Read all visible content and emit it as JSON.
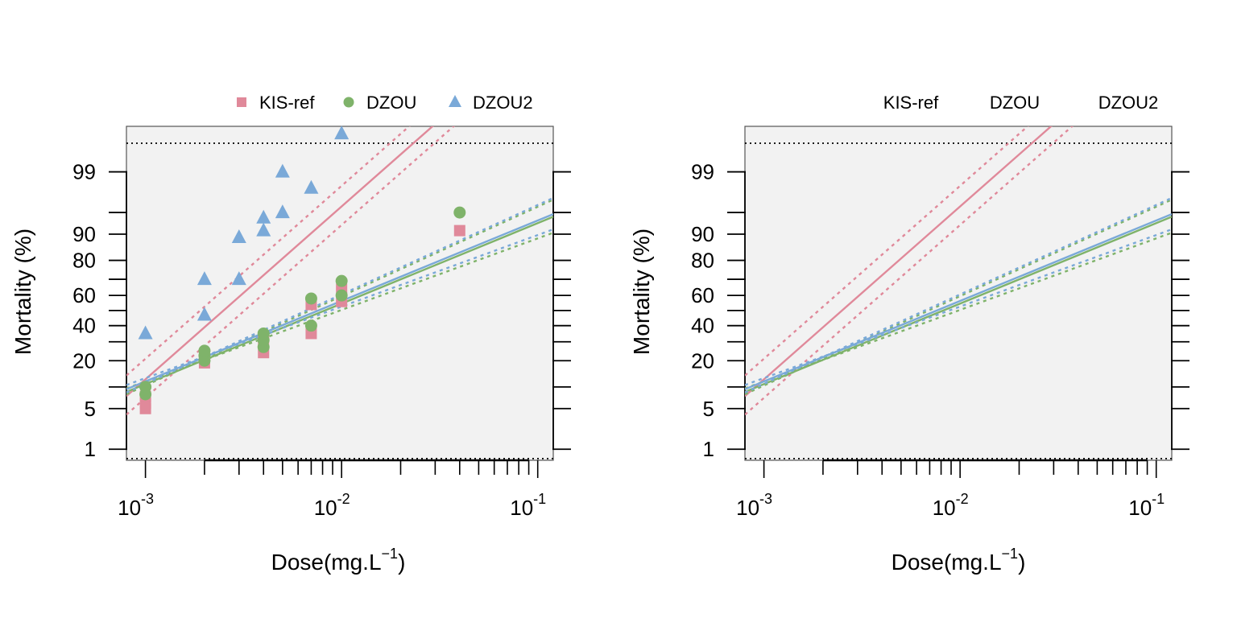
{
  "colors": {
    "KIS-ref": "#e0899a",
    "DZOU": "#7fb36a",
    "DZOU2": "#7aa9d8",
    "panel_bg": "#f2f2f2",
    "frame": "#555555"
  },
  "chart_data": [
    {
      "type": "scatter",
      "scale": {
        "x": "log10",
        "y": "probit"
      },
      "title": "",
      "xlabel": "Dose(mg.L",
      "xlabel_sup": "−1",
      "xlabel_close": ")",
      "ylabel": "Mortality (%)",
      "xlim": [
        0.0008,
        0.12
      ],
      "ylim_percent": [
        0.6,
        99.9
      ],
      "x_tick_labels": [
        {
          "value": 0.001,
          "base": "10",
          "exp": "-3"
        },
        {
          "value": 0.01,
          "base": "10",
          "exp": "-2"
        },
        {
          "value": 0.1,
          "base": "10",
          "exp": "-1"
        }
      ],
      "y_tick_labels": [
        1,
        5,
        20,
        40,
        60,
        80,
        90,
        99
      ],
      "y_minor_ticks": [
        1,
        5,
        10,
        20,
        30,
        40,
        50,
        60,
        70,
        80,
        90,
        95,
        99
      ],
      "reference_lines_percent": [
        0.65,
        99.75
      ],
      "legend": {
        "position": "top-right",
        "entries": [
          {
            "name": "KIS-ref",
            "marker": "square"
          },
          {
            "name": "DZOU",
            "marker": "circle"
          },
          {
            "name": "DZOU2",
            "marker": "triangle"
          }
        ]
      },
      "series": [
        {
          "name": "KIS-ref",
          "marker": "square",
          "points": [
            [
              0.001,
              5
            ],
            [
              0.001,
              6
            ],
            [
              0.001,
              7.5
            ],
            [
              0.002,
              19
            ],
            [
              0.002,
              21
            ],
            [
              0.004,
              24
            ],
            [
              0.004,
              30
            ],
            [
              0.004,
              33
            ],
            [
              0.007,
              35
            ],
            [
              0.007,
              54
            ],
            [
              0.01,
              56
            ],
            [
              0.01,
              64
            ],
            [
              0.04,
              91
            ]
          ],
          "fit": {
            "ld50": 0.0025,
            "slope": 2.9
          },
          "ci_low": {
            "ld50": 0.0032,
            "slope": 2.9
          },
          "ci_high": {
            "ld50": 0.0019,
            "slope": 2.9
          }
        },
        {
          "name": "DZOU",
          "marker": "circle",
          "points": [
            [
              0.001,
              8
            ],
            [
              0.001,
              10
            ],
            [
              0.002,
              20
            ],
            [
              0.002,
              22.5
            ],
            [
              0.002,
              25
            ],
            [
              0.004,
              27
            ],
            [
              0.004,
              31
            ],
            [
              0.004,
              35
            ],
            [
              0.007,
              40
            ],
            [
              0.007,
              58
            ],
            [
              0.01,
              60
            ],
            [
              0.01,
              69
            ],
            [
              0.04,
              95
            ]
          ],
          "fit": {
            "ld50": 0.0082,
            "slope": 1.35
          },
          "ci_low": {
            "ld50": 0.0098,
            "slope": 1.2
          },
          "ci_high": {
            "ld50": 0.0069,
            "slope": 1.5
          }
        },
        {
          "name": "DZOU2",
          "marker": "triangle",
          "points": [
            [
              0.001,
              35
            ],
            [
              0.002,
              47
            ],
            [
              0.002,
              70
            ],
            [
              0.003,
              70
            ],
            [
              0.003,
              89
            ],
            [
              0.004,
              91
            ],
            [
              0.004,
              94
            ],
            [
              0.005,
              95
            ],
            [
              0.005,
              99
            ],
            [
              0.007,
              98
            ],
            [
              0.01,
              99.85
            ]
          ],
          "fit": {
            "ld50": 0.0076,
            "slope": 1.35
          },
          "ci_low": {
            "ld50": 0.0088,
            "slope": 1.2
          },
          "ci_high": {
            "ld50": 0.0066,
            "slope": 1.5
          }
        }
      ]
    },
    {
      "type": "line",
      "scale": {
        "x": "log10",
        "y": "probit"
      },
      "title": "",
      "xlabel": "Dose(mg.L",
      "xlabel_sup": "−1",
      "xlabel_close": ")",
      "ylabel": "Mortality (%)",
      "xlim": [
        0.0008,
        0.12
      ],
      "ylim_percent": [
        0.6,
        99.9
      ],
      "x_tick_labels": [
        {
          "value": 0.001,
          "base": "10",
          "exp": "-3"
        },
        {
          "value": 0.01,
          "base": "10",
          "exp": "-2"
        },
        {
          "value": 0.1,
          "base": "10",
          "exp": "-1"
        }
      ],
      "y_tick_labels": [
        1,
        5,
        20,
        40,
        60,
        80,
        90,
        99
      ],
      "y_minor_ticks": [
        1,
        5,
        10,
        20,
        30,
        40,
        50,
        60,
        70,
        80,
        90,
        95,
        99
      ],
      "reference_lines_percent": [
        0.65,
        99.75
      ],
      "legend": {
        "position": "top-right",
        "entries": [
          {
            "name": "KIS-ref"
          },
          {
            "name": "DZOU"
          },
          {
            "name": "DZOU2"
          }
        ]
      },
      "series": [
        {
          "name": "KIS-ref",
          "fit": {
            "ld50": 0.0025,
            "slope": 2.9
          },
          "ci_low": {
            "ld50": 0.0032,
            "slope": 2.9
          },
          "ci_high": {
            "ld50": 0.0019,
            "slope": 2.9
          }
        },
        {
          "name": "DZOU",
          "fit": {
            "ld50": 0.0082,
            "slope": 1.35
          },
          "ci_low": {
            "ld50": 0.0098,
            "slope": 1.2
          },
          "ci_high": {
            "ld50": 0.0069,
            "slope": 1.5
          }
        },
        {
          "name": "DZOU2",
          "fit": {
            "ld50": 0.0076,
            "slope": 1.35
          },
          "ci_low": {
            "ld50": 0.0088,
            "slope": 1.2
          },
          "ci_high": {
            "ld50": 0.0066,
            "slope": 1.5
          }
        }
      ]
    }
  ]
}
